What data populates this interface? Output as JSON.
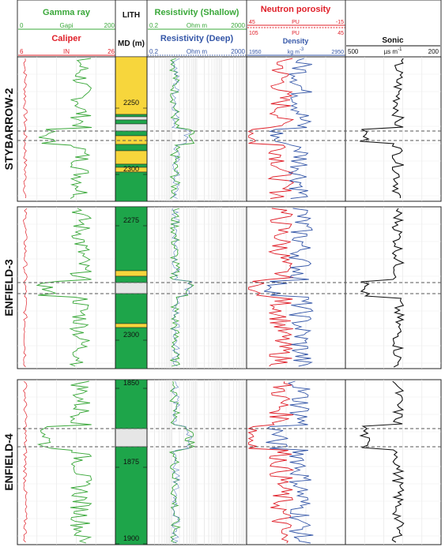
{
  "header": {
    "gamma": {
      "title": "Gamma ray",
      "unit": "Gapi",
      "min": "0",
      "max": "200",
      "color": "#3aa83a"
    },
    "caliper": {
      "title": "Caliper",
      "unit": "IN",
      "min": "6",
      "max": "26",
      "color": "#e0202a"
    },
    "lith": {
      "title": "LITH",
      "md": "MD (m)"
    },
    "res_shallow": {
      "title": "Resistivity (Shallow)",
      "unit": "Ohm m",
      "min": "0.2",
      "max": "2000",
      "color": "#3aa83a"
    },
    "res_deep": {
      "title": "Resistivity (Deep)",
      "unit": "Ohm m",
      "min": "0.2",
      "max": "2000",
      "color": "#3557a8"
    },
    "neutron": {
      "title": "Neutron porosity",
      "unit1": "PU",
      "min1": "45",
      "max1": "-15",
      "unit2": "PU",
      "min2": "105",
      "max2": "45",
      "color": "#e0202a"
    },
    "density": {
      "title": "Density",
      "unit": "kg m",
      "unit_sup": "-3",
      "min": "1950",
      "max": "2950",
      "color": "#3557a8"
    },
    "sonic": {
      "title": "Sonic",
      "unit": "µs m",
      "unit_sup": "-1",
      "min": "500",
      "max": "200",
      "color": "#111111"
    }
  },
  "colors": {
    "sand": "#f7d63c",
    "shale": "#1ea54a",
    "gap": "#e6e6e6"
  },
  "wells": [
    {
      "name": "STYBARROW-2",
      "depth_labels": [
        "2250",
        "2300"
      ]
    },
    {
      "name": "ENFIELD-3",
      "depth_labels": [
        "2275",
        "2300"
      ]
    },
    {
      "name": "ENFIELD-4",
      "depth_labels": [
        "1850",
        "1875",
        "1900"
      ]
    }
  ]
}
